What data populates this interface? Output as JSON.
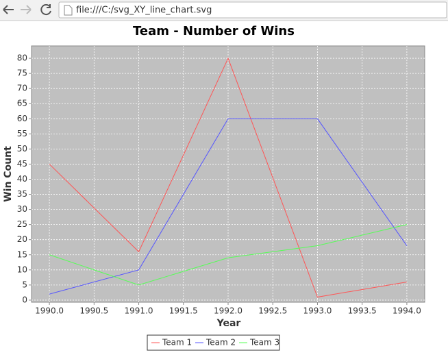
{
  "browser": {
    "url": "file:///C:/svg_XY_line_chart.svg"
  },
  "chart_data": {
    "type": "line",
    "title": "Team - Number of Wins",
    "xlabel": "Year",
    "ylabel": "Win Count",
    "x": [
      1990,
      1991,
      1992,
      1993,
      1994
    ],
    "series": [
      {
        "name": "Team 1",
        "color": "#ff5555",
        "values": [
          45,
          16,
          80,
          1,
          6
        ]
      },
      {
        "name": "Team 2",
        "color": "#5555ff",
        "values": [
          2,
          10,
          60,
          60,
          18
        ]
      },
      {
        "name": "Team 3",
        "color": "#55ff55",
        "values": [
          15,
          5,
          14,
          18,
          25
        ]
      }
    ],
    "xlim": [
      1989.8,
      1994.2
    ],
    "xticks": [
      {
        "value": 1990,
        "label": "1990.0"
      },
      {
        "value": 1990.5,
        "label": "1990.5"
      },
      {
        "value": 1991,
        "label": "1991.0"
      },
      {
        "value": 1991.5,
        "label": "1991.5"
      },
      {
        "value": 1992,
        "label": "1992.0"
      },
      {
        "value": 1992.5,
        "label": "1992.5"
      },
      {
        "value": 1993,
        "label": "1993.0"
      },
      {
        "value": 1993.5,
        "label": "1993.5"
      },
      {
        "value": 1994,
        "label": "1994.0"
      }
    ],
    "ylim": [
      -0.7,
      84.1
    ],
    "yticks": [
      0,
      5,
      10,
      15,
      20,
      25,
      30,
      35,
      40,
      45,
      50,
      55,
      60,
      65,
      70,
      75,
      80
    ],
    "grid": true,
    "legend": "bottom"
  }
}
